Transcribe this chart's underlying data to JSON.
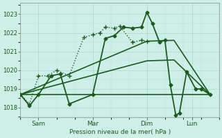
{
  "bg_color": "#ceeee8",
  "grid_color_major": "#a8d8cc",
  "grid_color_minor": "#b8e4da",
  "line_color": "#1a5c1a",
  "ylabel": "Pression niveau de la mer( hPa )",
  "xtick_labels": [
    "Sam",
    "Mar",
    "Dim",
    "Lun"
  ],
  "xtick_positions": [
    1,
    4,
    7,
    9.5
  ],
  "ylim": [
    1017.5,
    1023.6
  ],
  "yticks": [
    1018,
    1019,
    1020,
    1021,
    1022,
    1023
  ],
  "xlim": [
    0,
    11
  ],
  "series": [
    {
      "x": [
        0,
        0.5,
        1.0,
        1.7,
        2.2,
        2.7,
        4.0,
        4.7,
        5.2,
        5.7,
        6.2,
        6.7,
        7.0,
        7.3,
        7.7,
        8.0,
        8.3,
        8.6,
        8.8,
        9.2,
        9.7,
        10.0,
        10.5
      ],
      "y": [
        1018.7,
        1018.1,
        1018.7,
        1019.7,
        1019.8,
        1018.2,
        1018.7,
        1021.7,
        1021.85,
        1022.3,
        1022.25,
        1022.3,
        1023.1,
        1022.5,
        1021.5,
        1021.6,
        1019.2,
        1017.6,
        1017.7,
        1019.9,
        1019.0,
        1019.0,
        1018.7
      ],
      "style": "solid",
      "marker": "D",
      "markersize": 2.5,
      "linewidth": 1.3,
      "zorder": 4
    },
    {
      "x": [
        0,
        7.0,
        9.0,
        10.5
      ],
      "y": [
        1018.7,
        1018.7,
        1018.7,
        1018.7
      ],
      "style": "solid",
      "marker": null,
      "markersize": 0,
      "linewidth": 1.2,
      "zorder": 2
    },
    {
      "x": [
        0,
        7.0,
        8.5,
        10.5
      ],
      "y": [
        1018.7,
        1020.5,
        1020.55,
        1018.7
      ],
      "style": "solid",
      "marker": null,
      "markersize": 0,
      "linewidth": 1.2,
      "zorder": 2
    },
    {
      "x": [
        0,
        7.0,
        8.5,
        10.5
      ],
      "y": [
        1018.7,
        1021.55,
        1021.6,
        1018.7
      ],
      "style": "solid",
      "marker": null,
      "markersize": 0,
      "linewidth": 1.2,
      "zorder": 2
    },
    {
      "x": [
        0,
        0.5,
        1.0,
        1.5,
        2.0,
        2.7,
        3.5,
        4.0,
        4.4,
        4.7,
        5.2,
        5.5,
        6.2,
        6.7,
        7.0
      ],
      "y": [
        1018.7,
        1018.2,
        1019.7,
        1019.7,
        1020.0,
        1019.7,
        1021.75,
        1021.9,
        1022.0,
        1022.3,
        1022.25,
        1022.35,
        1021.5,
        1021.6,
        1021.55
      ],
      "style": "dotted",
      "marker": "+",
      "markersize": 4,
      "linewidth": 1.0,
      "zorder": 3
    }
  ]
}
